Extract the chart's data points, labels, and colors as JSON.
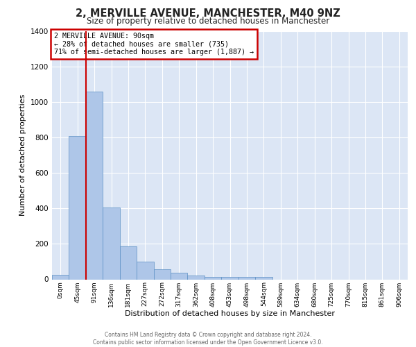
{
  "title": "2, MERVILLE AVENUE, MANCHESTER, M40 9NZ",
  "subtitle": "Size of property relative to detached houses in Manchester",
  "xlabel": "Distribution of detached houses by size in Manchester",
  "ylabel": "Number of detached properties",
  "bin_labels": [
    "0sqm",
    "45sqm",
    "91sqm",
    "136sqm",
    "181sqm",
    "227sqm",
    "272sqm",
    "317sqm",
    "362sqm",
    "408sqm",
    "453sqm",
    "498sqm",
    "544sqm",
    "589sqm",
    "634sqm",
    "680sqm",
    "725sqm",
    "770sqm",
    "815sqm",
    "861sqm",
    "906sqm"
  ],
  "bar_values": [
    25,
    808,
    1060,
    405,
    185,
    100,
    55,
    38,
    20,
    12,
    12,
    12,
    12,
    0,
    0,
    0,
    0,
    0,
    0,
    0,
    0
  ],
  "bar_color": "#aec6e8",
  "bar_edge_color": "#5a8fc4",
  "background_color": "#dce6f5",
  "grid_color": "#ffffff",
  "red_line_index": 2,
  "annotation_line1": "2 MERVILLE AVENUE: 90sqm",
  "annotation_line2": "← 28% of detached houses are smaller (735)",
  "annotation_line3": "71% of semi-detached houses are larger (1,887) →",
  "annotation_box_color": "#ffffff",
  "annotation_box_edge_color": "#cc0000",
  "red_line_color": "#cc0000",
  "ylim": [
    0,
    1400
  ],
  "yticks": [
    0,
    200,
    400,
    600,
    800,
    1000,
    1200,
    1400
  ],
  "footer_line1": "Contains HM Land Registry data © Crown copyright and database right 2024.",
  "footer_line2": "Contains public sector information licensed under the Open Government Licence v3.0."
}
